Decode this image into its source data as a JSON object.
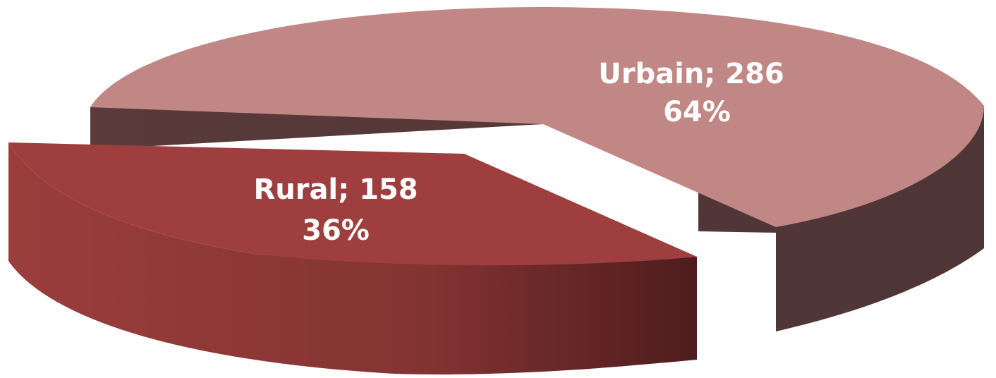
{
  "chart_data": {
    "type": "pie",
    "title": "",
    "slices": [
      {
        "label": "Urbain",
        "value": 286,
        "percent": "64%",
        "display": "Urbain; 286",
        "color": "#C08785"
      },
      {
        "label": "Rural",
        "value": 158,
        "percent": "36%",
        "display": "Rural; 158",
        "color": "#9E3E3E"
      }
    ],
    "style": "3d-exploded",
    "legend": "none"
  }
}
